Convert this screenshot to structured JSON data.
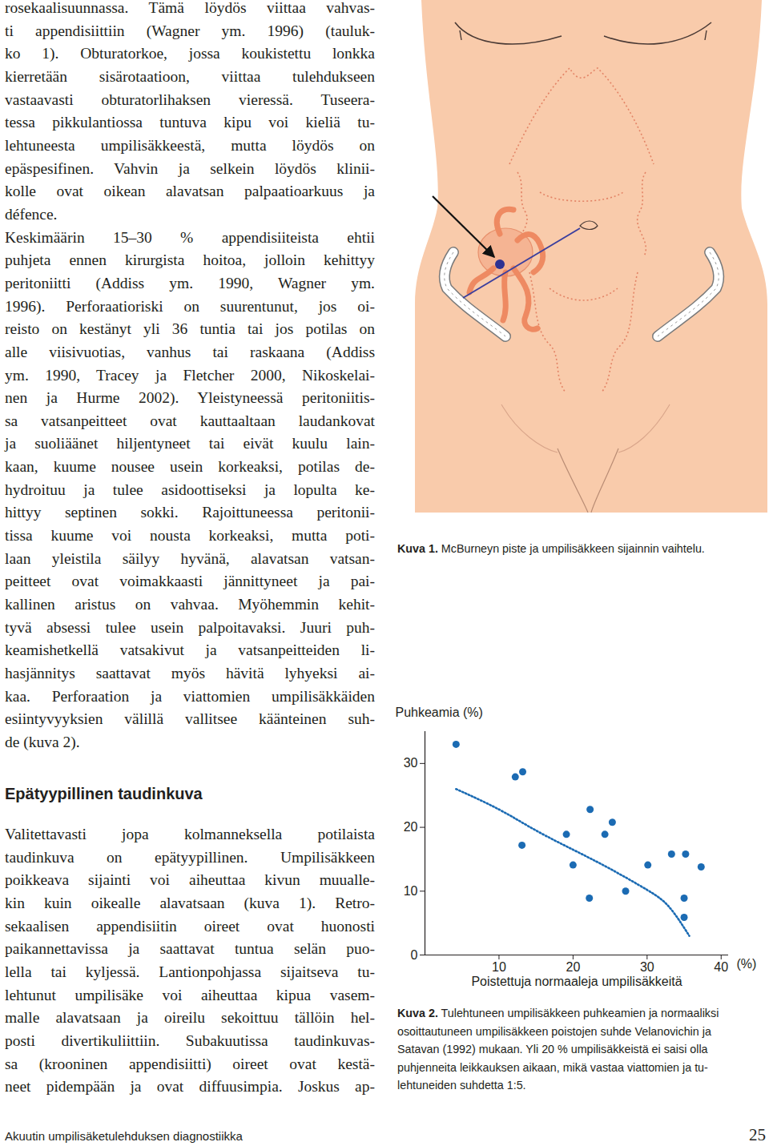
{
  "left_column": {
    "paragraphs_top": [
      [
        "rosekaalisuunnassa. Tämä löydös viittaa vahvas-",
        "ti appendisiittiin (Wagner ym. 1996) (tauluk-",
        "ko 1). Obturatorkoe, jossa koukistettu lonkka",
        "kierretään sisärotaatioon, viittaa tulehdukseen",
        "vastaavasti obturatorlihaksen vieressä. Tuseera-",
        "tessa pikkulantiossa tuntuva kipu voi kieliä tu-",
        "lehtuneesta umpilisäkkeestä, mutta löydös on",
        "epäspesifinen. Vahvin ja selkein löydös klinii-",
        "kolle ovat oikean alavatsan palpaatioarkuus ja",
        "défence."
      ],
      [
        "Keskimäärin 15–30 % appendisiiteista ehtii",
        "puhjeta ennen kirurgista hoitoa, jolloin kehittyy",
        "peritoniitti (Addiss ym. 1990, Wagner ym.",
        "1996). Perforaatioriski on suurentunut, jos oi-",
        "reisto on kestänyt yli 36 tuntia tai jos potilas on",
        "alle viisivuotias, vanhus tai raskaana (Addiss",
        "ym. 1990, Tracey ja Fletcher 2000, Nikoskelai-",
        "nen ja Hurme 2002). Yleistyneessä peritoniitis-",
        "sa vatsanpeitteet ovat kauttaaltaan laudankovat",
        "ja suoliäänet hiljentyneet tai eivät kuulu lain-",
        "kaan, kuume nousee usein korkeaksi, potilas de-",
        "hydroituu ja tulee asidoottiseksi ja lopulta ke-",
        "hittyy septinen sokki. Rajoittuneessa peritonii-",
        "tissa kuume voi nousta korkeaksi, mutta poti-",
        "laan yleistila säilyy hyvänä, alavatsan vatsan-",
        "peitteet ovat voimakkaasti jännittyneet ja pai-",
        "kallinen aristus on vahvaa. Myöhemmin kehit-",
        "tyvä absessi tulee usein palpoitavaksi. Juuri puh-",
        "keamishetkellä vatsakivut ja vatsanpeitteiden li-",
        "hasjännitys saattavat myös hävitä lyhyeksi ai-",
        "kaa. Perforaation ja viattomien umpilisäkkäiden",
        "esiintyvyyksien välillä vallitsee käänteinen suh-",
        "de (kuva 2)."
      ]
    ],
    "heading": "Epätyypillinen taudinkuva",
    "paragraphs_bottom": [
      [
        "Valitettavasti jopa kolmanneksella potilaista",
        "taudinkuva on epätyypillinen. Umpilisäkkeen",
        "poikkeava sijainti voi aiheuttaa kivun muualle-",
        "kin kuin oikealle alavatsaan (kuva 1). Retro-",
        "sekaalisen appendisiitin oireet ovat huonosti",
        "paikannettavissa ja saattavat tuntua selän puo-",
        "lella tai kyljessä. Lantionpohjassa sijaitseva tu-",
        "lehtunut umpilisäke voi aiheuttaa kipua vasem-",
        "malle alavatsaan ja oireilu sekoittuu tällöin hel-",
        "posti divertikuliittiin. Subakuutissa taudinkuvas-",
        "sa (krooninen appendisiitti) oireet ovat kestä-",
        "neet pidempään ja ovat diffuusimpia. Joskus ap-"
      ]
    ]
  },
  "figure1": {
    "label": "Kuva 1.",
    "caption": "McBurneyn piste ja umpilisäkkeen sijainnin vaihtelu."
  },
  "figure2": {
    "label": "Kuva 2.",
    "caption_lines": [
      "Tulehtuneen umpilisäkkeen puhkeamien ja normaaliksi",
      "osoittautuneen umpilisäkkeen poistojen suhde Velanovichin ja",
      "Satavan (1992) mukaan. Yli 20 % umpilisäkkeistä ei saisi olla",
      "puhjenneita leikkauksen aikaan, mikä vastaa viattomien ja tu-",
      "lehtuneiden suhdetta 1:5."
    ]
  },
  "footer": {
    "title": "Akuutin umpilisäketulehduksen diagnostiikka",
    "page": 25
  },
  "chart_data": {
    "type": "scatter",
    "ylabel": "Puhkeamia (%)",
    "xlabel": "Poistettuja normaaleja umpilisäkkeitä",
    "annotations": [
      {
        "text": "(%)"
      }
    ],
    "xlim": [
      0,
      41
    ],
    "ylim": [
      0,
      35
    ],
    "xticks": [
      10,
      20,
      30,
      40
    ],
    "yticks": [
      0,
      10,
      20,
      30
    ],
    "grid": false,
    "series": [
      {
        "type": "scatter",
        "marker": "circle",
        "color": "#1b6bb3",
        "x": [
          4.2,
          12.2,
          13.2,
          13.1,
          19.1,
          20.0,
          22.3,
          22.2,
          24.3,
          25.3,
          27.1,
          30.1,
          33.3,
          35.2,
          35.0,
          35.0,
          37.3
        ],
        "values": [
          33.0,
          27.9,
          28.7,
          17.2,
          18.9,
          14.1,
          22.8,
          8.9,
          18.9,
          20.8,
          10.0,
          14.1,
          15.8,
          15.8,
          8.9,
          5.9,
          13.8
        ]
      },
      {
        "type": "line",
        "line_style": "dotted",
        "color": "#1b6bb3",
        "x": [
          4.2,
          10,
          15,
          20,
          25,
          30,
          33,
          35.7
        ],
        "values": [
          26.0,
          22.8,
          19.5,
          16.5,
          13.5,
          10.2,
          7.5,
          3.0
        ]
      }
    ]
  }
}
